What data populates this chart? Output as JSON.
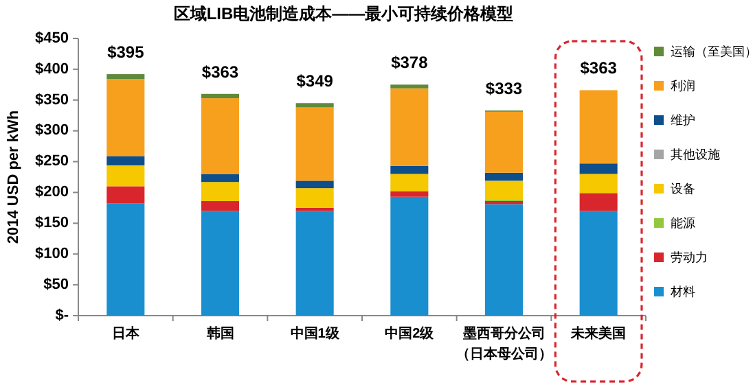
{
  "chart_data": {
    "type": "bar",
    "stacked": true,
    "title": "区域LIB电池制造成本——最小可持续价格模型",
    "ylabel": "2014 USD per kWh",
    "categories": [
      "日本",
      "韩国",
      "中国1级",
      "中国2级",
      "墨西哥分公司（日本母公司）",
      "未来美国"
    ],
    "series": [
      {
        "name": "材料",
        "color": "#1a8fd0",
        "values": [
          182,
          170,
          170,
          193,
          181,
          170
        ]
      },
      {
        "name": "劳动力",
        "color": "#d8262c",
        "values": [
          28,
          16,
          5,
          9,
          5,
          29
        ]
      },
      {
        "name": "能源",
        "color": "#92c83e",
        "values": [
          0,
          0,
          0,
          0,
          2,
          0
        ]
      },
      {
        "name": "设备",
        "color": "#f5c800",
        "values": [
          34,
          31,
          32,
          28,
          31,
          31
        ]
      },
      {
        "name": "其他设施",
        "color": "#a5a5a5",
        "values": [
          0,
          0,
          0,
          0,
          0,
          0
        ]
      },
      {
        "name": "维护",
        "color": "#0e4e8a",
        "values": [
          15,
          13,
          12,
          13,
          13,
          17
        ]
      },
      {
        "name": "利润",
        "color": "#f7a01e",
        "values": [
          125,
          123,
          119,
          126,
          99,
          119
        ]
      },
      {
        "name": "运输（至美国）",
        "color": "#5e8a3a",
        "values": [
          8,
          7,
          7,
          6,
          2,
          0
        ]
      }
    ],
    "totals": [
      "$395",
      "$363",
      "$349",
      "$378",
      "$333",
      "$363"
    ],
    "ylim": [
      0,
      450
    ],
    "yticks": [
      {
        "value": 0,
        "label": "$-"
      },
      {
        "value": 50,
        "label": "$50"
      },
      {
        "value": 100,
        "label": "$100"
      },
      {
        "value": 150,
        "label": "$150"
      },
      {
        "value": 200,
        "label": "$200"
      },
      {
        "value": 250,
        "label": "$250"
      },
      {
        "value": 300,
        "label": "$300"
      },
      {
        "value": 350,
        "label": "$350"
      },
      {
        "value": 400,
        "label": "$400"
      },
      {
        "value": 450,
        "label": "$450"
      }
    ],
    "legend": "right",
    "grid": false
  }
}
